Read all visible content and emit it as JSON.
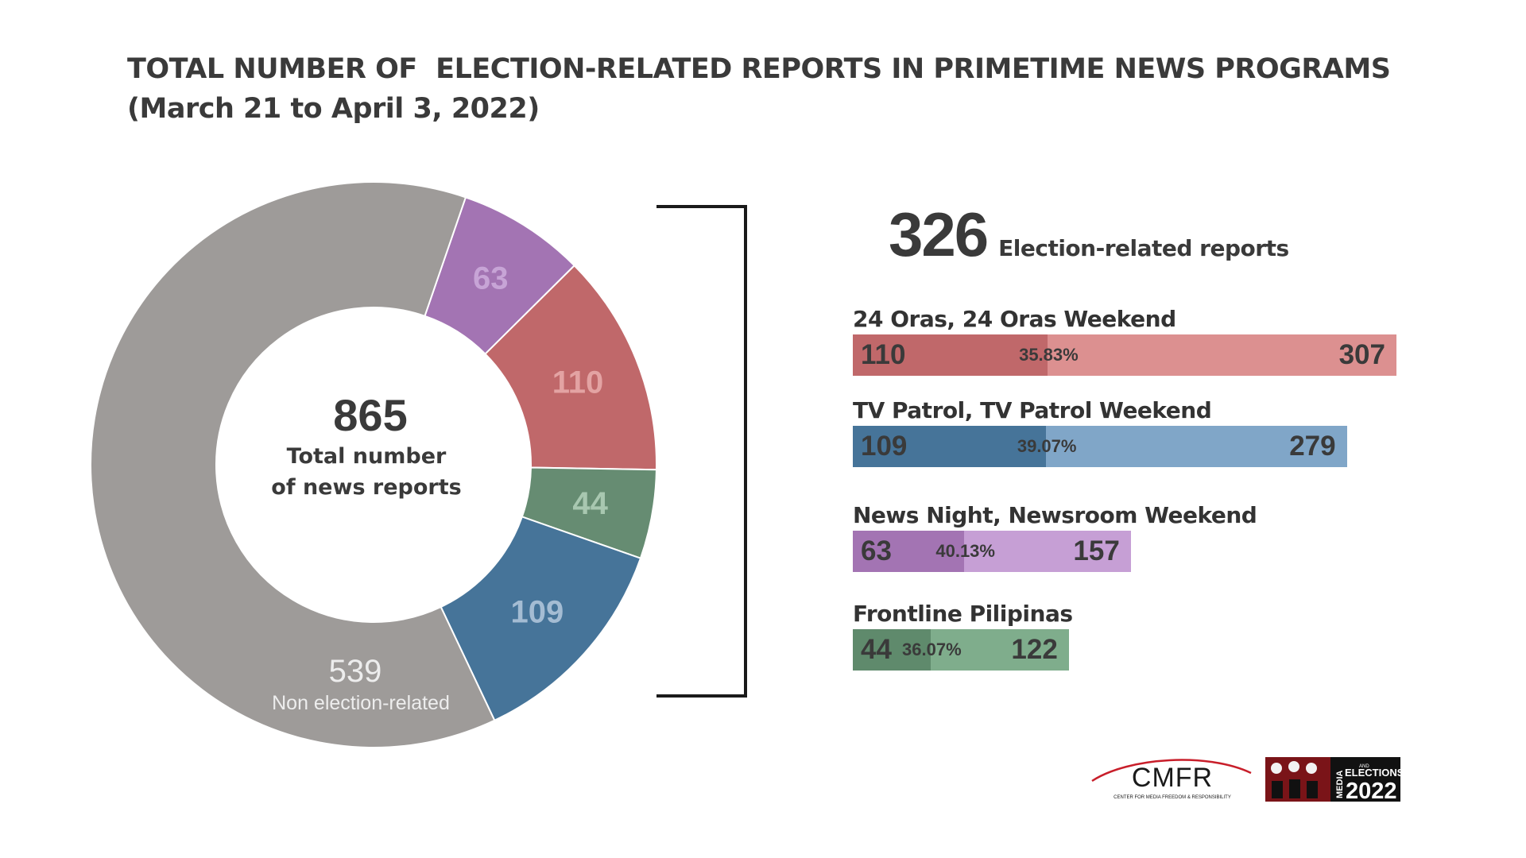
{
  "title": {
    "line1": "TOTAL NUMBER OF  ELECTION-RELATED REPORTS IN PRIMETIME NEWS PROGRAMS",
    "line2": "(March 21 to April 3, 2022)"
  },
  "donut": {
    "center_value": "865",
    "center_line1": "Total number",
    "center_line2": "of news reports",
    "other_sublabel": "Non election-related"
  },
  "summary": {
    "value": "326",
    "label": "Election-related reports"
  },
  "programs": [
    {
      "name": "24 Oras, 24 Oras Weekend",
      "election": "110",
      "total": "307",
      "pct": "35.83%"
    },
    {
      "name": "TV Patrol, TV Patrol Weekend",
      "election": "109",
      "total": "279",
      "pct": "39.07%"
    },
    {
      "name": "News Night, Newsroom Weekend",
      "election": "63",
      "total": "157",
      "pct": "40.13%"
    },
    {
      "name": "Frontline Pilipinas",
      "election": "44",
      "total": "122",
      "pct": "36.07%"
    }
  ],
  "logos": {
    "cmfr": "CMFR",
    "cmfr_sub": "CENTER FOR MEDIA FREEDOM & RESPONSIBILITY",
    "me_top": "MEDIA",
    "me_and": "AND",
    "me_mid": "ELECTIONS",
    "me_year": "2022"
  },
  "colors": {
    "gray": "#9e9b99",
    "purple": "#a374b3",
    "red": "#c0686a",
    "green": "#668c72",
    "blue": "#467499",
    "red_dark": "#c0686a",
    "red_light": "#dc9090",
    "blue_dark": "#467499",
    "blue_light": "#80a6c8",
    "purple_dark": "#a374b3",
    "purple_light": "#c69fd5",
    "green_dark": "#5f8a6c",
    "green_light": "#7fad8c"
  },
  "chart_data": [
    {
      "type": "pie",
      "hole": true,
      "categories": [
        "63",
        "110",
        "44",
        "109",
        "Non election-related"
      ],
      "values": [
        63,
        110,
        44,
        109,
        539
      ],
      "colors": [
        "#a374b3",
        "#c0686a",
        "#668c72",
        "#467499",
        "#9e9b99"
      ]
    },
    {
      "type": "bar",
      "orientation": "horizontal",
      "categories": [
        "24 Oras, 24 Oras Weekend",
        "TV Patrol, TV Patrol Weekend",
        "News Night, Newsroom Weekend",
        "Frontline Pilipinas"
      ],
      "series": [
        {
          "values": [
            110,
            109,
            63,
            44
          ]
        },
        {
          "values": [
            307,
            279,
            157,
            122
          ]
        }
      ],
      "percentages": [
        "35.83%",
        "39.07%",
        "40.13%",
        "36.07%"
      ]
    }
  ]
}
